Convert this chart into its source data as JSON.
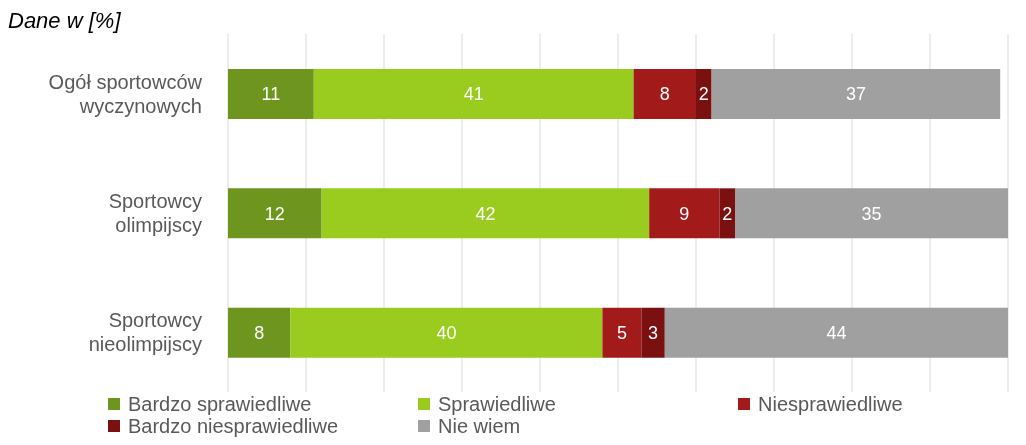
{
  "chart_data": {
    "type": "bar",
    "orientation": "horizontal",
    "stacked": true,
    "title": "Dane w [%]",
    "categories": [
      "Ogół sportowców wyczynowych",
      "Sportowcy olimpijscy",
      "Sportowcy nieolimpijscy"
    ],
    "series": [
      {
        "name": "Bardzo sprawiedliwe",
        "color": "#6e961e",
        "values": [
          11,
          12,
          8
        ]
      },
      {
        "name": "Sprawiedliwe",
        "color": "#99cc1f",
        "values": [
          41,
          42,
          40
        ]
      },
      {
        "name": "Niesprawiedliwe",
        "color": "#a31a1a",
        "values": [
          8,
          9,
          5
        ]
      },
      {
        "name": "Bardzo niesprawiedliwe",
        "color": "#7a1010",
        "values": [
          2,
          2,
          3
        ]
      },
      {
        "name": "Nie wiem",
        "color": "#a0a0a0",
        "values": [
          37,
          35,
          44
        ]
      }
    ],
    "xlim": [
      0,
      100
    ],
    "xticks": [
      {
        "value": 0,
        "label": null
      },
      {
        "value": 10,
        "label": null
      },
      {
        "value": 20,
        "label": null
      },
      {
        "value": 30,
        "label": null
      },
      {
        "value": 40,
        "label": null
      },
      {
        "value": 50,
        "label": null
      },
      {
        "value": 60,
        "label": null
      },
      {
        "value": 70,
        "label": null
      },
      {
        "value": 80,
        "label": null
      },
      {
        "value": 90,
        "label": null
      },
      {
        "value": 100,
        "label": null
      }
    ],
    "tick_labels": "y",
    "grid": "x",
    "legend": "bottom",
    "data_labels": true
  }
}
